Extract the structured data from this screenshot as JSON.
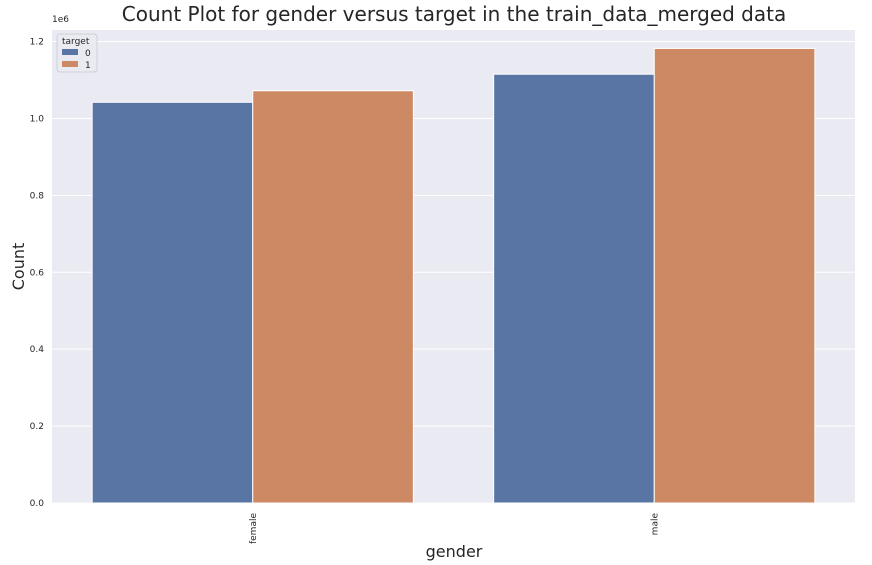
{
  "chart_data": {
    "type": "bar",
    "title": "Count Plot for gender versus target in the train_data_merged data",
    "xlabel": "gender",
    "ylabel": "Count",
    "y_offset_label": "1e6",
    "categories": [
      "female",
      "male"
    ],
    "series": [
      {
        "name": "0",
        "values": [
          1.042,
          1.115
        ]
      },
      {
        "name": "1",
        "values": [
          1.072,
          1.182
        ]
      }
    ],
    "ylim": [
      0,
      1.23
    ],
    "yticks": [
      0.0,
      0.2,
      0.4,
      0.6,
      0.8,
      1.0,
      1.2
    ],
    "ytick_labels": [
      "0.0",
      "0.2",
      "0.4",
      "0.6",
      "0.8",
      "1.0",
      "1.2"
    ],
    "grid": true,
    "legend": {
      "title": "target",
      "placement": "top-left"
    },
    "colors": [
      "#5875a4",
      "#cc8963"
    ],
    "background": "#eaeaf2"
  }
}
